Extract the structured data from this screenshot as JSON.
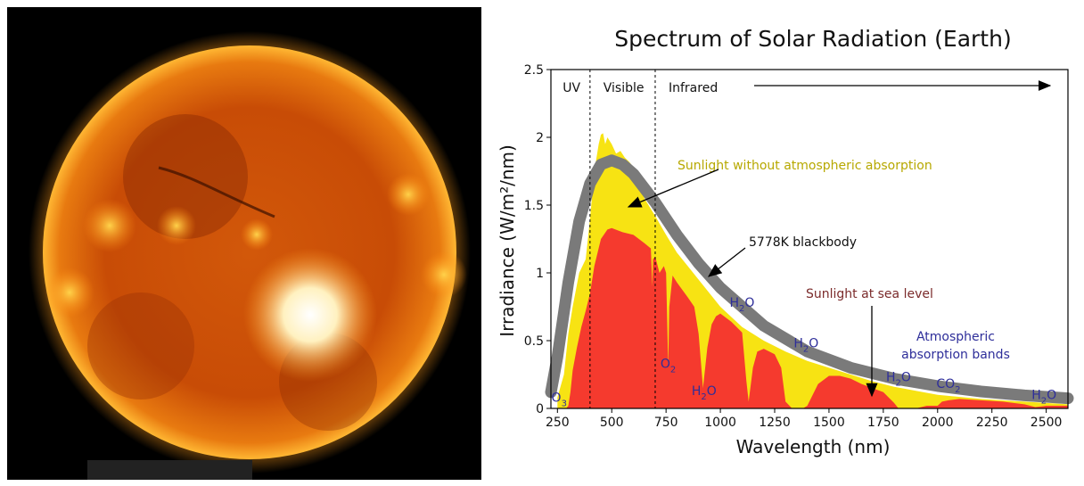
{
  "chart_data": {
    "type": "area",
    "title": "Spectrum of Solar Radiation (Earth)",
    "xlabel": "Wavelength (nm)",
    "ylabel": "Irradiance (W/m²/nm)",
    "xlim": [
      220,
      2600
    ],
    "ylim": [
      0,
      2.5
    ],
    "x_ticks": [
      "250",
      "500",
      "750",
      "1000",
      "1250",
      "1500",
      "1750",
      "2000",
      "2250",
      "2500"
    ],
    "x_tick_values": [
      250,
      500,
      750,
      1000,
      1250,
      1500,
      1750,
      2000,
      2250,
      2500
    ],
    "y_ticks": [
      "0",
      "0.5",
      "1",
      "1.5",
      "2",
      "2.5"
    ],
    "y_tick_values": [
      0,
      0.5,
      1,
      1.5,
      2,
      2.5
    ],
    "regions": [
      {
        "label": "UV",
        "x": 315
      },
      {
        "label": "Visible",
        "x": 555
      },
      {
        "label": "Infrared",
        "x": 875
      }
    ],
    "region_boundaries": [
      400,
      700
    ],
    "series": [
      {
        "name": "Sunlight without atmospheric absorption",
        "color": "#f7e313",
        "x": [
          250,
          280,
          300,
          320,
          350,
          380,
          400,
          420,
          440,
          450,
          460,
          470,
          480,
          500,
          520,
          540,
          560,
          580,
          600,
          620,
          650,
          700,
          750,
          800,
          850,
          900,
          1000,
          1100,
          1200,
          1300,
          1400,
          1500,
          1600,
          1700,
          1800,
          1900,
          2000,
          2200,
          2400,
          2600
        ],
        "y": [
          0.08,
          0.25,
          0.55,
          0.75,
          1.0,
          1.1,
          1.4,
          1.75,
          1.95,
          2.02,
          2.03,
          1.95,
          2.0,
          1.95,
          1.88,
          1.9,
          1.85,
          1.82,
          1.78,
          1.7,
          1.55,
          1.42,
          1.28,
          1.15,
          1.05,
          0.95,
          0.75,
          0.6,
          0.5,
          0.42,
          0.35,
          0.3,
          0.25,
          0.2,
          0.16,
          0.13,
          0.1,
          0.07,
          0.05,
          0.03
        ]
      },
      {
        "name": "Sunlight at sea level",
        "color": "#f53a2e",
        "x": [
          290,
          300,
          310,
          320,
          340,
          360,
          380,
          400,
          420,
          450,
          480,
          500,
          550,
          600,
          650,
          680,
          687,
          690,
          700,
          720,
          740,
          750,
          760,
          765,
          780,
          800,
          850,
          880,
          900,
          920,
          940,
          960,
          980,
          1000,
          1050,
          1100,
          1120,
          1130,
          1150,
          1170,
          1200,
          1250,
          1280,
          1300,
          1330,
          1340,
          1360,
          1380,
          1400,
          1450,
          1500,
          1550,
          1600,
          1650,
          1700,
          1750,
          1800,
          1820,
          1850,
          1900,
          1950,
          2000,
          2020,
          2050,
          2100,
          2200,
          2300,
          2400,
          2450,
          2500,
          2600
        ],
        "y": [
          0.0,
          0.02,
          0.12,
          0.28,
          0.45,
          0.6,
          0.72,
          0.85,
          1.05,
          1.25,
          1.32,
          1.33,
          1.3,
          1.28,
          1.22,
          1.18,
          0.9,
          1.1,
          1.12,
          1.0,
          1.05,
          1.0,
          0.3,
          0.75,
          0.98,
          0.93,
          0.82,
          0.75,
          0.55,
          0.15,
          0.45,
          0.62,
          0.68,
          0.7,
          0.64,
          0.56,
          0.2,
          0.05,
          0.3,
          0.42,
          0.44,
          0.4,
          0.3,
          0.05,
          0.0,
          0.0,
          0.0,
          0.0,
          0.02,
          0.18,
          0.24,
          0.24,
          0.22,
          0.18,
          0.15,
          0.12,
          0.04,
          0.0,
          0.0,
          0.0,
          0.02,
          0.02,
          0.05,
          0.06,
          0.07,
          0.06,
          0.05,
          0.03,
          0.01,
          0.02,
          0.02
        ]
      },
      {
        "name": "5778K blackbody",
        "color": "#7a7a7a",
        "x": [
          220,
          250,
          300,
          350,
          400,
          450,
          500,
          550,
          600,
          700,
          800,
          900,
          1000,
          1200,
          1400,
          1600,
          1800,
          2000,
          2200,
          2400,
          2600
        ],
        "y": [
          0.12,
          0.38,
          0.93,
          1.38,
          1.66,
          1.8,
          1.83,
          1.8,
          1.73,
          1.52,
          1.28,
          1.07,
          0.89,
          0.61,
          0.42,
          0.3,
          0.22,
          0.165,
          0.125,
          0.096,
          0.075
        ]
      }
    ],
    "annotations": [
      {
        "text": "Sunlight without atmospheric absorption",
        "color": "#b7a800"
      },
      {
        "text": "5778K blackbody",
        "color": "#111111"
      },
      {
        "text": "Sunlight at sea level",
        "color": "#7b2b2b"
      },
      {
        "text": "Atmospheric",
        "color": "#2e2e9a"
      },
      {
        "text": "absorption bands",
        "color": "#2e2e9a"
      }
    ],
    "absorption_labels": [
      {
        "base": "O",
        "sub": "3",
        "x": 258,
        "y": 0.05
      },
      {
        "base": "O",
        "sub": "2",
        "x": 760,
        "y": 0.3
      },
      {
        "base": "H",
        "sub": "2",
        "tail": "O",
        "x": 925,
        "y": 0.1
      },
      {
        "base": "H",
        "sub": "2",
        "tail": "O",
        "x": 1100,
        "y": 0.75
      },
      {
        "base": "H",
        "sub": "2",
        "tail": "O",
        "x": 1395,
        "y": 0.45
      },
      {
        "base": "H",
        "sub": "2",
        "tail": "O",
        "x": 1820,
        "y": 0.2
      },
      {
        "base": "CO",
        "sub": "2",
        "x": 2050,
        "y": 0.15
      },
      {
        "base": "H",
        "sub": "2",
        "tail": "O",
        "x": 2490,
        "y": 0.07
      }
    ]
  }
}
